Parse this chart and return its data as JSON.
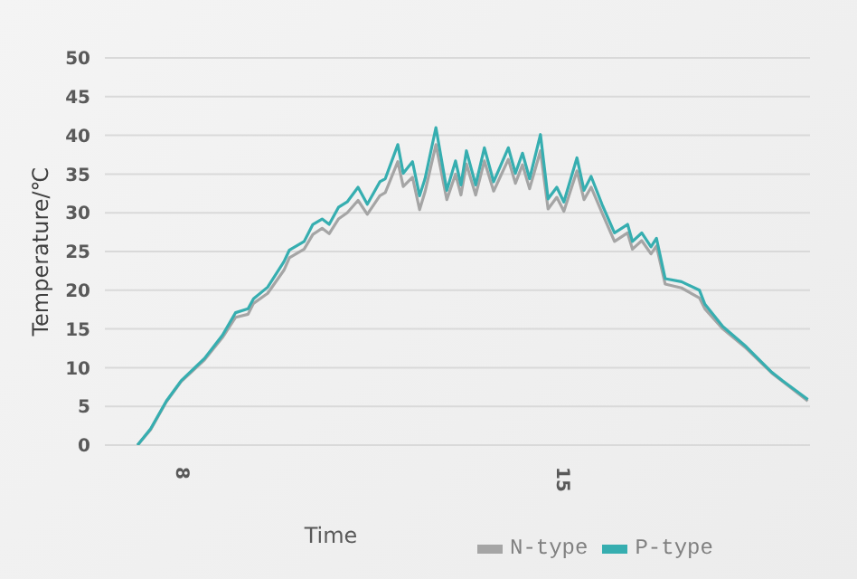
{
  "chart_data": {
    "type": "line",
    "xlabel": "Time",
    "ylabel": "Temperature/℃",
    "x": [
      7.2,
      7.44,
      7.73,
      8.0,
      8.43,
      8.76,
      9.0,
      9.23,
      9.33,
      9.59,
      9.89,
      9.99,
      10.26,
      10.42,
      10.59,
      10.72,
      10.89,
      11.05,
      11.25,
      11.42,
      11.65,
      11.75,
      11.98,
      12.08,
      12.25,
      12.38,
      12.48,
      12.68,
      12.88,
      13.04,
      13.14,
      13.24,
      13.41,
      13.57,
      13.74,
      14.01,
      14.14,
      14.27,
      14.4,
      14.6,
      14.74,
      14.9,
      15.03,
      15.27,
      15.4,
      15.53,
      15.73,
      15.96,
      16.2,
      16.29,
      16.46,
      16.63,
      16.73,
      16.89,
      17.19,
      17.52,
      17.62,
      17.95,
      18.38,
      18.85,
      19.05,
      19.51
    ],
    "series": [
      {
        "name": "N-type",
        "color": "#a5a5a5",
        "values": [
          0,
          2.0,
          5.6,
          8.2,
          11.0,
          13.9,
          16.5,
          16.9,
          18.3,
          19.6,
          22.6,
          24.2,
          25.3,
          27.2,
          28.0,
          27.3,
          29.2,
          30.0,
          31.6,
          29.8,
          32.2,
          32.6,
          36.6,
          33.4,
          34.6,
          30.4,
          32.7,
          38.8,
          31.7,
          35.0,
          32.3,
          36.3,
          32.3,
          36.7,
          32.8,
          36.9,
          33.8,
          36.2,
          33.1,
          38.0,
          30.5,
          32.0,
          30.2,
          35.4,
          31.7,
          33.3,
          30.0,
          26.3,
          27.4,
          25.3,
          26.4,
          24.7,
          25.7,
          20.8,
          20.3,
          19.0,
          17.6,
          15.0,
          12.5,
          9.3,
          8.2,
          5.7
        ]
      },
      {
        "name": "P-type",
        "color": "#36aeb0",
        "values": [
          0,
          2.1,
          5.7,
          8.3,
          11.2,
          14.2,
          17.1,
          17.6,
          18.9,
          20.4,
          23.7,
          25.2,
          26.3,
          28.5,
          29.2,
          28.5,
          30.7,
          31.4,
          33.3,
          31.1,
          34.0,
          34.4,
          38.8,
          35.1,
          36.6,
          32.2,
          34.4,
          41.0,
          32.9,
          36.7,
          33.6,
          38.0,
          33.6,
          38.4,
          34.0,
          38.4,
          35.1,
          37.7,
          34.4,
          40.1,
          31.8,
          33.3,
          31.4,
          37.1,
          32.9,
          34.7,
          31.1,
          27.4,
          28.5,
          26.3,
          27.4,
          25.6,
          26.7,
          21.5,
          21.1,
          20.0,
          18.2,
          15.3,
          12.7,
          9.4,
          8.3,
          5.9
        ]
      }
    ],
    "xlim": [
      6.6,
      19.55
    ],
    "xticks": [
      8,
      15
    ],
    "ylim": [
      0,
      50
    ],
    "yticks": [
      0,
      5,
      10,
      15,
      20,
      25,
      30,
      35,
      40,
      45,
      50
    ],
    "grid": "y",
    "legend": "bottom"
  }
}
